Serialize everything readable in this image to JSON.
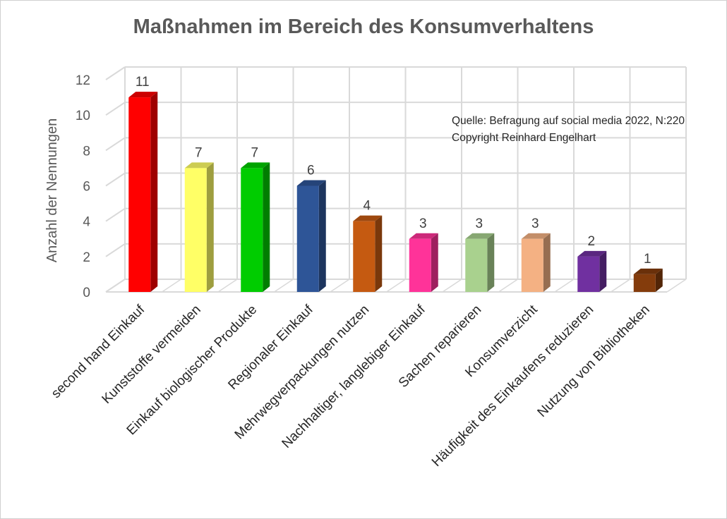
{
  "chart_data": {
    "type": "bar",
    "title": "Maßnahmen im Bereich des Konsumverhaltens",
    "ylabel": "Anzahl der Nennungen",
    "xlabel": "",
    "ylim": [
      0,
      12
    ],
    "yticks": [
      "0",
      "2",
      "4",
      "6",
      "8",
      "10",
      "12"
    ],
    "grid": true,
    "categories": [
      "second hand Einkauf",
      "Kunststoffe vermeiden",
      "Einkauf biologischer Produkte",
      "Regionaler Einkauf",
      "Mehrwegverpackungen nutzen",
      "Nachhaltiger, langlebiger Einkauf",
      "Sachen reparieren",
      "Konsumverzicht",
      "Häufigkeit des Einkaufens reduzieren",
      "Nutzung von Bibliotheken"
    ],
    "values": [
      11,
      7,
      7,
      6,
      4,
      3,
      3,
      3,
      2,
      1
    ],
    "colors": [
      "#ff0000",
      "#ffff66",
      "#00cc00",
      "#2e5597",
      "#c55a11",
      "#ff3399",
      "#a9d18e",
      "#f4b183",
      "#7030a0",
      "#843c0c"
    ],
    "annotation": [
      "Quelle: Befragung auf social media 2022, N:220",
      "Copyright Reinhard Engelhart"
    ]
  }
}
